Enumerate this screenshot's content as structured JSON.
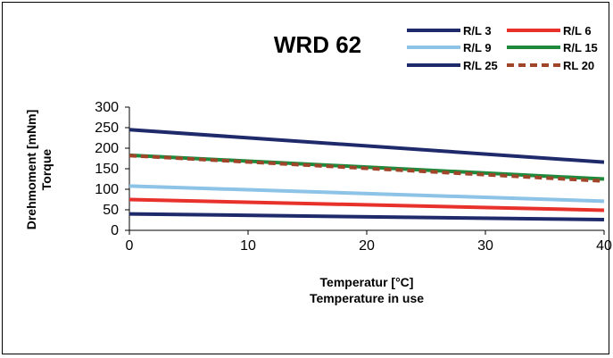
{
  "chart_data": {
    "type": "line",
    "title": "WRD 62",
    "xlabel": "Temperatur [°C]",
    "xlabel2": "Temperature in use",
    "ylabel": "Drehmoment [mNm]",
    "ylabel2": "Torque",
    "xlim": [
      0,
      40
    ],
    "ylim": [
      0,
      300
    ],
    "xticks": [
      0,
      10,
      20,
      30,
      40
    ],
    "yticks": [
      0,
      50,
      100,
      150,
      200,
      250,
      300
    ],
    "x": [
      0,
      40
    ],
    "legend_position": "top-right",
    "series": [
      {
        "name": "R/L 3",
        "values": [
          40,
          26
        ],
        "color": "#1f2a6b",
        "dash": false
      },
      {
        "name": "R/L 6",
        "values": [
          75,
          49
        ],
        "color": "#e8312a",
        "dash": false
      },
      {
        "name": "R/L 9",
        "values": [
          108,
          71
        ],
        "color": "#8cc3e6",
        "dash": false
      },
      {
        "name": "R/L 15",
        "values": [
          183,
          125
        ],
        "color": "#1f8a3c",
        "dash": false
      },
      {
        "name": "R/L 25",
        "values": [
          245,
          166
        ],
        "color": "#1f2a6b",
        "dash": false
      },
      {
        "name": "RL 20",
        "values": [
          182,
          120
        ],
        "color": "#a0442a",
        "dash": true
      }
    ]
  }
}
